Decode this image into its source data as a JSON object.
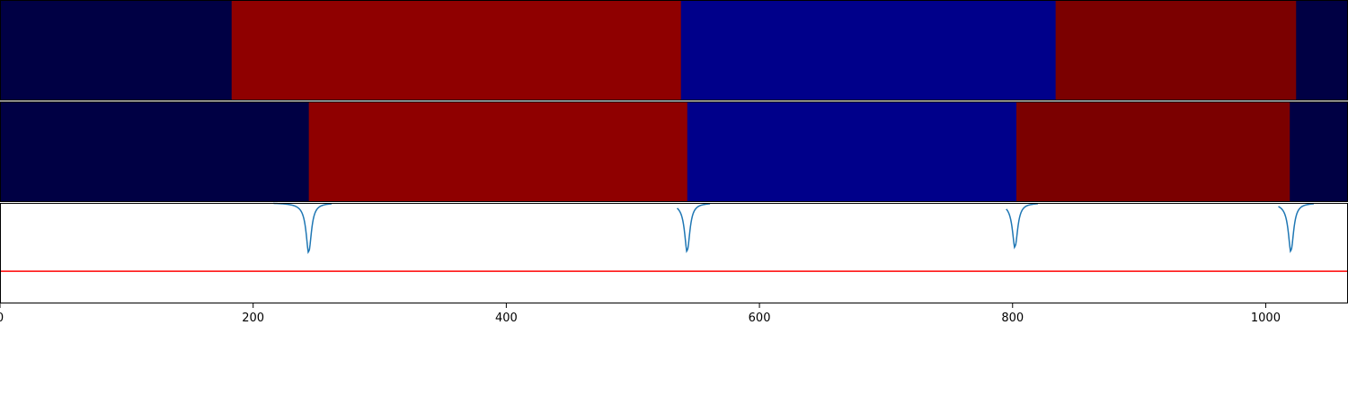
{
  "chart_data": {
    "type": "heatmap",
    "xlim": [
      0,
      1065
    ],
    "x_ticks": [
      0,
      200,
      400,
      600,
      800,
      1000
    ],
    "x_tick_labels": [
      "0",
      "200",
      "400",
      "600",
      "800",
      "1000"
    ],
    "grid": false,
    "rows": [
      {
        "segments": [
          {
            "start": 0,
            "end": 183,
            "color": "#000044"
          },
          {
            "start": 183,
            "end": 538,
            "color": "#8f0000"
          },
          {
            "start": 538,
            "end": 834,
            "color": "#00008a"
          },
          {
            "start": 834,
            "end": 1024,
            "color": "#7b0000"
          },
          {
            "start": 1024,
            "end": 1065,
            "color": "#000044"
          }
        ]
      },
      {
        "segments": [
          {
            "start": 0,
            "end": 244,
            "color": "#000044"
          },
          {
            "start": 244,
            "end": 543,
            "color": "#8f0000"
          },
          {
            "start": 543,
            "end": 803,
            "color": "#00008a"
          },
          {
            "start": 803,
            "end": 1019,
            "color": "#7b0000"
          },
          {
            "start": 1019,
            "end": 1065,
            "color": "#000044"
          }
        ]
      }
    ],
    "signal": {
      "color": "#1f77b4",
      "baseline": 1.0,
      "ylim": [
        0.0,
        1.0
      ],
      "dips": [
        {
          "center": 244,
          "depth": 0.48,
          "width": 2.5,
          "onset": 216
        },
        {
          "center": 543,
          "depth": 0.47,
          "width": 2.5,
          "onset": 535
        },
        {
          "center": 802,
          "depth": 0.43,
          "width": 2.5,
          "onset": 795
        },
        {
          "center": 1020,
          "depth": 0.47,
          "width": 2.5,
          "onset": 1010
        }
      ]
    },
    "threshold": {
      "value": 0.32,
      "color": "#ff0000"
    }
  }
}
